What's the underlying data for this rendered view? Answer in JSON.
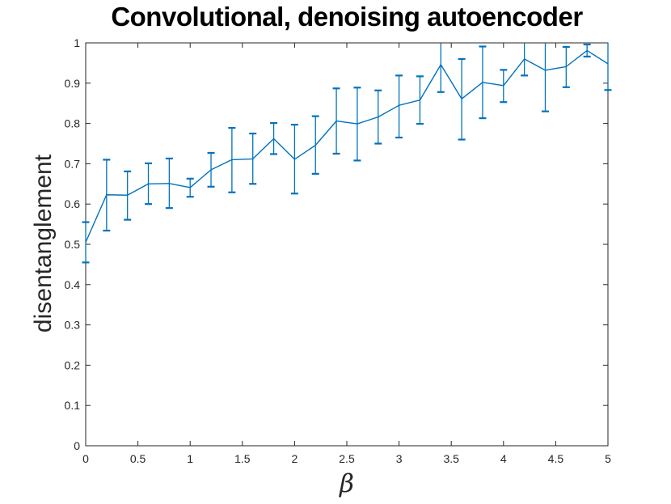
{
  "chart_data": {
    "type": "line",
    "title": "Convolutional, denoising autoencoder",
    "xlabel": "β",
    "ylabel": "disentanglement",
    "legend": null,
    "grid": false,
    "xlim": [
      0,
      5
    ],
    "ylim": [
      0,
      1
    ],
    "xticks": [
      0,
      0.5,
      1,
      1.5,
      2,
      2.5,
      3,
      3.5,
      4,
      4.5,
      5
    ],
    "xtick_labels": [
      "0",
      "0.5",
      "1",
      "1.5",
      "2",
      "2.5",
      "3",
      "3.5",
      "4",
      "4.5",
      "5"
    ],
    "yticks": [
      0,
      0.1,
      0.2,
      0.3,
      0.4,
      0.5,
      0.6,
      0.7,
      0.8,
      0.9,
      1
    ],
    "ytick_labels": [
      "0",
      "0.1",
      "0.2",
      "0.3",
      "0.4",
      "0.5",
      "0.6",
      "0.7",
      "0.8",
      "0.9",
      "1"
    ],
    "line_color": "#0072BD",
    "axis_color": "#262626",
    "title_color": "#000000",
    "x": [
      0.0,
      0.2,
      0.4,
      0.6,
      0.8,
      1.0,
      1.2,
      1.4,
      1.6,
      1.8,
      2.0,
      2.2,
      2.4,
      2.6,
      2.8,
      3.0,
      3.2,
      3.4,
      3.6,
      3.8,
      4.0,
      4.2,
      4.4,
      4.6,
      4.8,
      5.0
    ],
    "y": [
      0.505,
      0.623,
      0.622,
      0.65,
      0.651,
      0.641,
      0.685,
      0.71,
      0.712,
      0.762,
      0.711,
      0.746,
      0.806,
      0.799,
      0.816,
      0.845,
      0.858,
      0.946,
      0.861,
      0.902,
      0.894,
      0.96,
      0.932,
      0.941,
      0.981,
      0.948
    ],
    "y_lower": [
      0.455,
      0.534,
      0.561,
      0.6,
      0.59,
      0.618,
      0.643,
      0.629,
      0.65,
      0.724,
      0.626,
      0.675,
      0.725,
      0.708,
      0.75,
      0.765,
      0.799,
      0.878,
      0.76,
      0.813,
      0.853,
      0.919,
      0.83,
      0.89,
      0.966,
      0.883
    ],
    "y_upper": [
      0.555,
      0.71,
      0.681,
      0.701,
      0.713,
      0.663,
      0.727,
      0.789,
      0.775,
      0.801,
      0.797,
      0.818,
      0.887,
      0.889,
      0.882,
      0.919,
      0.917,
      1.0,
      0.96,
      0.991,
      0.933,
      1.0,
      1.0,
      0.99,
      0.996,
      1.0
    ],
    "upper_clipped_at_ylim_x": [
      3.4,
      4.2,
      4.4,
      5.0
    ]
  }
}
